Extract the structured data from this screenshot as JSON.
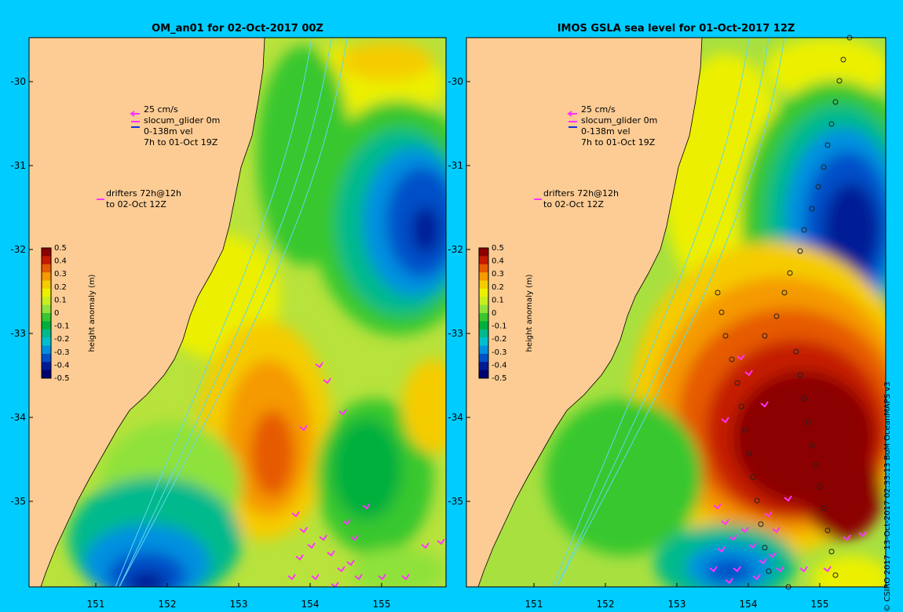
{
  "panels": [
    {
      "title": "OM_an01 for 02-Oct-2017 00Z",
      "kind": "model",
      "legend": {
        "scale": "25 cm/s",
        "glider": "slocum_glider 0m",
        "vel": "0-138m vel",
        "window": "7h to 01-Oct 19Z",
        "drifters": "drifters 72h@12h",
        "drifters_to": "to 02-Oct 12Z"
      }
    },
    {
      "title": "IMOS GSLA sea level  for 01-Oct-2017 12Z",
      "kind": "obs",
      "legend": {
        "scale": "25 cm/s",
        "glider": "slocum_glider 0m",
        "vel": "0-138m vel",
        "window": "7h to 01-Oct 19Z",
        "drifters": "drifters 72h@12h",
        "drifters_to": "to 02-Oct 12Z"
      }
    }
  ],
  "axes": {
    "lon_ticks": [
      "151",
      "152",
      "153",
      "154",
      "155"
    ],
    "lat_ticks": [
      "-30",
      "-31",
      "-32",
      "-33",
      "-34",
      "-35"
    ]
  },
  "colorbar": {
    "label": "height anomaly (m)",
    "ticks": [
      "0.5",
      "0.4",
      "0.3",
      "0.2",
      "0.1",
      "0",
      "-0.1",
      "-0.2",
      "-0.3",
      "-0.4",
      "-0.5"
    ],
    "colors": [
      "#8b0000",
      "#c41a00",
      "#e65a00",
      "#f59a00",
      "#f5cc00",
      "#ecf000",
      "#c8ee20",
      "#8fe23a",
      "#39c72f",
      "#00b03c",
      "#00b98c",
      "#00c0d0",
      "#0090e0",
      "#0050c8",
      "#001a96",
      "#000070"
    ]
  },
  "copyright": {
    "symbol": "©",
    "text": "CSIRO 2017",
    "stamp": "13-Oct-2017 02:33:13 BoM OceanMAPS v3"
  }
}
